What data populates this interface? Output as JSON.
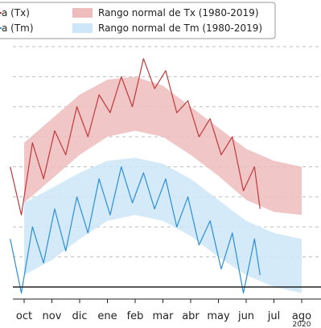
{
  "chart_data": {
    "type": "line",
    "title": "",
    "xlabel": "",
    "ylabel": "",
    "ylim": [
      -2,
      40
    ],
    "grid": "horizontal-dashed",
    "legend_placement": "top",
    "reference_line_y": 0,
    "categories": [
      "oct",
      "nov",
      "dic",
      "ene",
      "feb",
      "mar",
      "abr",
      "may",
      "jun",
      "jul",
      "ago"
    ],
    "clipped_year_label": "2020",
    "legend": [
      {
        "key": "tx_line",
        "label": "a (Tx)",
        "kind": "line",
        "color": "#c0393b"
      },
      {
        "key": "tx_band",
        "label": "Rango normal de Tx (1980-2019)",
        "kind": "band",
        "color": "#eebcbc"
      },
      {
        "key": "tm_line",
        "label": "a (Tm)",
        "kind": "line",
        "color": "#2a8fd8"
      },
      {
        "key": "tm_band",
        "label": "Rango normal de Tm (1980-2019)",
        "kind": "band",
        "color": "#cde6f8"
      }
    ],
    "bands": [
      {
        "key": "tx_band",
        "color": "#eebcbc",
        "x": [
          0,
          1,
          2,
          3,
          4,
          5,
          6,
          7,
          8,
          9,
          10
        ],
        "upper": [
          24,
          28,
          32,
          34.5,
          35,
          33.5,
          30,
          26.5,
          23,
          21,
          20
        ],
        "lower": [
          14,
          18,
          22,
          25,
          26,
          25,
          22,
          18.5,
          14.5,
          12.5,
          12
        ]
      },
      {
        "key": "tm_band",
        "color": "#cde6f8",
        "x": [
          0,
          1,
          2,
          3,
          4,
          5,
          6,
          7,
          8,
          9,
          10
        ],
        "upper": [
          14,
          16.5,
          19,
          21,
          21.5,
          20.5,
          18,
          14.5,
          11,
          9,
          8
        ],
        "lower": [
          2,
          4.5,
          8,
          11,
          12,
          11,
          8.5,
          5,
          2,
          0,
          -1
        ]
      }
    ],
    "series": [
      {
        "key": "tx_line",
        "color": "#c0393b",
        "x": [
          -0.5,
          -0.1,
          0.3,
          0.7,
          1.1,
          1.5,
          1.9,
          2.3,
          2.7,
          3.1,
          3.5,
          3.9,
          4.3,
          4.7,
          5.1,
          5.5,
          5.9,
          6.3,
          6.7,
          7.1,
          7.5,
          7.9,
          8.3,
          8.5
        ],
        "y": [
          20,
          12,
          24,
          18,
          26,
          22,
          30,
          25,
          32,
          29,
          35,
          30,
          38,
          33,
          36,
          29,
          31,
          25,
          28,
          22,
          25,
          16,
          20,
          13
        ]
      },
      {
        "key": "tm_line",
        "color": "#2a8fd8",
        "x": [
          -0.5,
          -0.1,
          0.3,
          0.7,
          1.1,
          1.5,
          1.9,
          2.3,
          2.7,
          3.1,
          3.5,
          3.9,
          4.3,
          4.7,
          5.1,
          5.5,
          5.9,
          6.3,
          6.7,
          7.1,
          7.5,
          7.9,
          8.3,
          8.5
        ],
        "y": [
          8,
          -1,
          10,
          4,
          13,
          6,
          15,
          9,
          18,
          12,
          20,
          14,
          19,
          13,
          18,
          10,
          15,
          7,
          11,
          3,
          9,
          -1,
          8,
          2
        ]
      }
    ]
  }
}
